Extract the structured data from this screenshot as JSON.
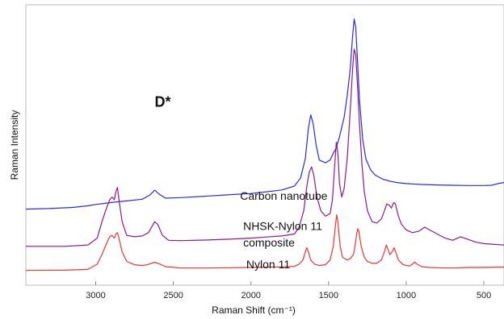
{
  "chart_data": {
    "type": "line",
    "title": "",
    "xlabel": "Raman Shift (cm⁻¹)",
    "ylabel": "Raman Intensity",
    "x_reversed": true,
    "xlim": [
      3450,
      370
    ],
    "ylim": [
      0,
      100
    ],
    "x_ticks": [
      "3000",
      "2500",
      "2000",
      "1500",
      "1000",
      "500"
    ],
    "x_tick_values": [
      3000,
      2500,
      2000,
      1500,
      1000,
      500
    ],
    "y_tick_labels_shown": false,
    "grid": false,
    "legend": "none",
    "annotations": [
      {
        "text": "D*",
        "x": 2620,
        "y": 64
      },
      {
        "text": "Carbon nanotube",
        "x": 2070,
        "y": 30
      },
      {
        "text": "NHSK-Nylon 11",
        "x": 2050,
        "y": 19
      },
      {
        "text": "composite",
        "x": 2050,
        "y": 13
      },
      {
        "text": "Nylon 11",
        "x": 2030,
        "y": 5
      }
    ],
    "series": [
      {
        "color": "#2a2ae8",
        "points": [
          [
            3450,
            26.6
          ],
          [
            3300,
            26.8
          ],
          [
            3150,
            27.2
          ],
          [
            3050,
            27.8
          ],
          [
            3000,
            28.3
          ],
          [
            2900,
            29.0
          ],
          [
            2800,
            29.6
          ],
          [
            2700,
            30.2
          ],
          [
            2650,
            31.8
          ],
          [
            2620,
            33.5
          ],
          [
            2590,
            32.0
          ],
          [
            2550,
            30.6
          ],
          [
            2450,
            30.8
          ],
          [
            2300,
            31.3
          ],
          [
            2150,
            31.8
          ],
          [
            2000,
            32.3
          ],
          [
            1900,
            32.9
          ],
          [
            1800,
            33.6
          ],
          [
            1720,
            35.0
          ],
          [
            1680,
            38.0
          ],
          [
            1650,
            45.0
          ],
          [
            1630,
            56.0
          ],
          [
            1615,
            61.0
          ],
          [
            1600,
            58.0
          ],
          [
            1580,
            50.0
          ],
          [
            1560,
            44.5
          ],
          [
            1520,
            43.5
          ],
          [
            1490,
            44.5
          ],
          [
            1470,
            47.0
          ],
          [
            1450,
            49.0
          ],
          [
            1430,
            53.0
          ],
          [
            1400,
            60.0
          ],
          [
            1380,
            68.0
          ],
          [
            1360,
            78.0
          ],
          [
            1345,
            90.0
          ],
          [
            1335,
            96.0
          ],
          [
            1325,
            93.0
          ],
          [
            1315,
            82.0
          ],
          [
            1300,
            66.0
          ],
          [
            1280,
            52.0
          ],
          [
            1260,
            45.0
          ],
          [
            1230,
            41.0
          ],
          [
            1200,
            39.0
          ],
          [
            1150,
            37.5
          ],
          [
            1100,
            36.7
          ],
          [
            1050,
            36.2
          ],
          [
            1000,
            35.9
          ],
          [
            900,
            35.6
          ],
          [
            800,
            35.4
          ],
          [
            700,
            35.3
          ],
          [
            600,
            35.2
          ],
          [
            500,
            35.2
          ],
          [
            450,
            35.3
          ],
          [
            400,
            36.0
          ],
          [
            370,
            36.3
          ]
        ]
      },
      {
        "color": "#8b1a8b",
        "points": [
          [
            3450,
            13.0
          ],
          [
            3200,
            13.0
          ],
          [
            3050,
            13.5
          ],
          [
            2990,
            16.0
          ],
          [
            2960,
            22.0
          ],
          [
            2930,
            27.0
          ],
          [
            2910,
            30.0
          ],
          [
            2895,
            31.0
          ],
          [
            2880,
            30.0
          ],
          [
            2870,
            33.0
          ],
          [
            2860,
            34.5
          ],
          [
            2850,
            30.0
          ],
          [
            2830,
            22.0
          ],
          [
            2800,
            17.0
          ],
          [
            2750,
            16.5
          ],
          [
            2700,
            16.8
          ],
          [
            2660,
            18.0
          ],
          [
            2620,
            22.0
          ],
          [
            2600,
            21.0
          ],
          [
            2570,
            17.0
          ],
          [
            2530,
            15.2
          ],
          [
            2450,
            15.1
          ],
          [
            2300,
            15.3
          ],
          [
            2150,
            15.6
          ],
          [
            2000,
            16.0
          ],
          [
            1900,
            16.4
          ],
          [
            1800,
            16.8
          ],
          [
            1720,
            17.5
          ],
          [
            1690,
            20.0
          ],
          [
            1660,
            26.0
          ],
          [
            1640,
            35.0
          ],
          [
            1625,
            40.0
          ],
          [
            1610,
            42.0
          ],
          [
            1595,
            39.0
          ],
          [
            1575,
            31.0
          ],
          [
            1550,
            26.0
          ],
          [
            1520,
            24.0
          ],
          [
            1490,
            25.0
          ],
          [
            1475,
            30.0
          ],
          [
            1460,
            43.0
          ],
          [
            1450,
            51.0
          ],
          [
            1440,
            47.0
          ],
          [
            1430,
            36.0
          ],
          [
            1415,
            31.0
          ],
          [
            1400,
            34.0
          ],
          [
            1380,
            45.0
          ],
          [
            1360,
            63.0
          ],
          [
            1345,
            78.0
          ],
          [
            1335,
            85.0
          ],
          [
            1325,
            83.0
          ],
          [
            1315,
            73.0
          ],
          [
            1300,
            57.0
          ],
          [
            1285,
            43.0
          ],
          [
            1270,
            33.0
          ],
          [
            1250,
            26.0
          ],
          [
            1220,
            22.0
          ],
          [
            1190,
            21.5
          ],
          [
            1160,
            23.0
          ],
          [
            1140,
            26.0
          ],
          [
            1125,
            28.5
          ],
          [
            1110,
            28.0
          ],
          [
            1095,
            27.0
          ],
          [
            1080,
            29.0
          ],
          [
            1070,
            28.5
          ],
          [
            1050,
            24.0
          ],
          [
            1030,
            21.0
          ],
          [
            1000,
            19.0
          ],
          [
            960,
            18.0
          ],
          [
            920,
            18.5
          ],
          [
            880,
            20.0
          ],
          [
            850,
            19.0
          ],
          [
            800,
            17.5
          ],
          [
            750,
            16.0
          ],
          [
            700,
            15.2
          ],
          [
            650,
            16.5
          ],
          [
            600,
            15.5
          ],
          [
            550,
            14.5
          ],
          [
            500,
            14.0
          ],
          [
            450,
            13.8
          ],
          [
            400,
            13.6
          ],
          [
            370,
            13.5
          ]
        ]
      },
      {
        "color": "#f03232",
        "points": [
          [
            3450,
            4.2
          ],
          [
            3200,
            4.3
          ],
          [
            3050,
            4.6
          ],
          [
            2990,
            6.5
          ],
          [
            2960,
            10.0
          ],
          [
            2930,
            14.0
          ],
          [
            2910,
            16.5
          ],
          [
            2895,
            17.0
          ],
          [
            2880,
            16.0
          ],
          [
            2870,
            17.5
          ],
          [
            2860,
            18.0
          ],
          [
            2850,
            16.0
          ],
          [
            2830,
            11.0
          ],
          [
            2800,
            7.5
          ],
          [
            2750,
            6.3
          ],
          [
            2700,
            6.0
          ],
          [
            2660,
            6.4
          ],
          [
            2620,
            7.2
          ],
          [
            2590,
            6.6
          ],
          [
            2550,
            5.6
          ],
          [
            2450,
            5.1
          ],
          [
            2300,
            5.1
          ],
          [
            2150,
            5.2
          ],
          [
            2000,
            5.3
          ],
          [
            1900,
            5.4
          ],
          [
            1800,
            5.5
          ],
          [
            1720,
            5.7
          ],
          [
            1690,
            6.5
          ],
          [
            1665,
            8.0
          ],
          [
            1650,
            11.0
          ],
          [
            1640,
            12.5
          ],
          [
            1630,
            11.0
          ],
          [
            1615,
            8.0
          ],
          [
            1590,
            6.5
          ],
          [
            1560,
            6.0
          ],
          [
            1520,
            6.3
          ],
          [
            1490,
            8.0
          ],
          [
            1470,
            13.0
          ],
          [
            1455,
            21.0
          ],
          [
            1448,
            24.5
          ],
          [
            1440,
            22.0
          ],
          [
            1425,
            13.0
          ],
          [
            1410,
            9.0
          ],
          [
            1395,
            8.5
          ],
          [
            1380,
            8.0
          ],
          [
            1360,
            8.5
          ],
          [
            1340,
            10.0
          ],
          [
            1330,
            13.0
          ],
          [
            1320,
            17.0
          ],
          [
            1312,
            19.5
          ],
          [
            1305,
            18.5
          ],
          [
            1290,
            13.0
          ],
          [
            1270,
            9.0
          ],
          [
            1250,
            7.5
          ],
          [
            1220,
            6.8
          ],
          [
            1190,
            6.8
          ],
          [
            1160,
            8.0
          ],
          [
            1140,
            11.0
          ],
          [
            1128,
            13.5
          ],
          [
            1118,
            12.0
          ],
          [
            1105,
            10.0
          ],
          [
            1090,
            11.0
          ],
          [
            1078,
            12.5
          ],
          [
            1068,
            11.0
          ],
          [
            1050,
            8.0
          ],
          [
            1020,
            6.3
          ],
          [
            980,
            5.8
          ],
          [
            960,
            6.5
          ],
          [
            945,
            7.3
          ],
          [
            930,
            6.5
          ],
          [
            900,
            5.6
          ],
          [
            850,
            5.3
          ],
          [
            800,
            5.2
          ],
          [
            700,
            5.1
          ],
          [
            600,
            5.3
          ],
          [
            500,
            5.3
          ],
          [
            400,
            5.4
          ],
          [
            370,
            5.4
          ]
        ]
      }
    ]
  }
}
